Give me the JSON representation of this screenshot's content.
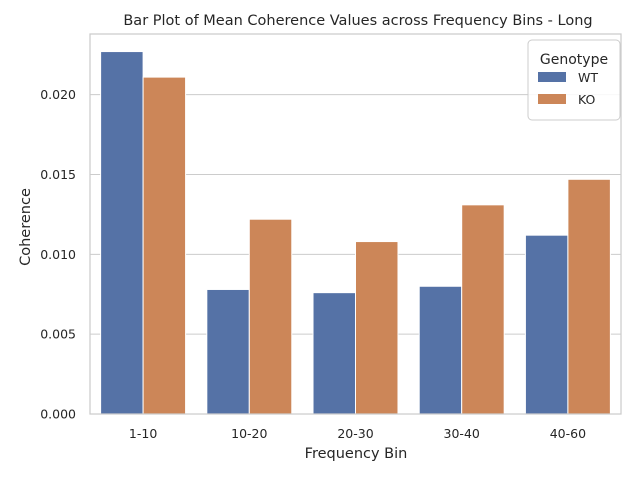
{
  "chart_data": {
    "type": "bar",
    "title": "Bar Plot of Mean Coherence Values across Frequency Bins - Long",
    "xlabel": "Frequency Bin",
    "ylabel": "Coherence",
    "categories": [
      "1-10",
      "10-20",
      "20-30",
      "30-40",
      "40-60"
    ],
    "series": [
      {
        "name": "WT",
        "color": "#5572a6",
        "values": [
          0.0227,
          0.0078,
          0.0076,
          0.008,
          0.0112
        ]
      },
      {
        "name": "KO",
        "color": "#cc8658",
        "values": [
          0.0211,
          0.0122,
          0.0108,
          0.0131,
          0.0147
        ]
      }
    ],
    "ylim": [
      0,
      0.0238
    ],
    "yticks": [
      0.0,
      0.005,
      0.01,
      0.015,
      0.02
    ],
    "ytick_labels": [
      "0.000",
      "0.005",
      "0.010",
      "0.015",
      "0.020"
    ],
    "grid": "horizontal",
    "legend": {
      "title": "Genotype",
      "placement": "upper-right"
    }
  }
}
